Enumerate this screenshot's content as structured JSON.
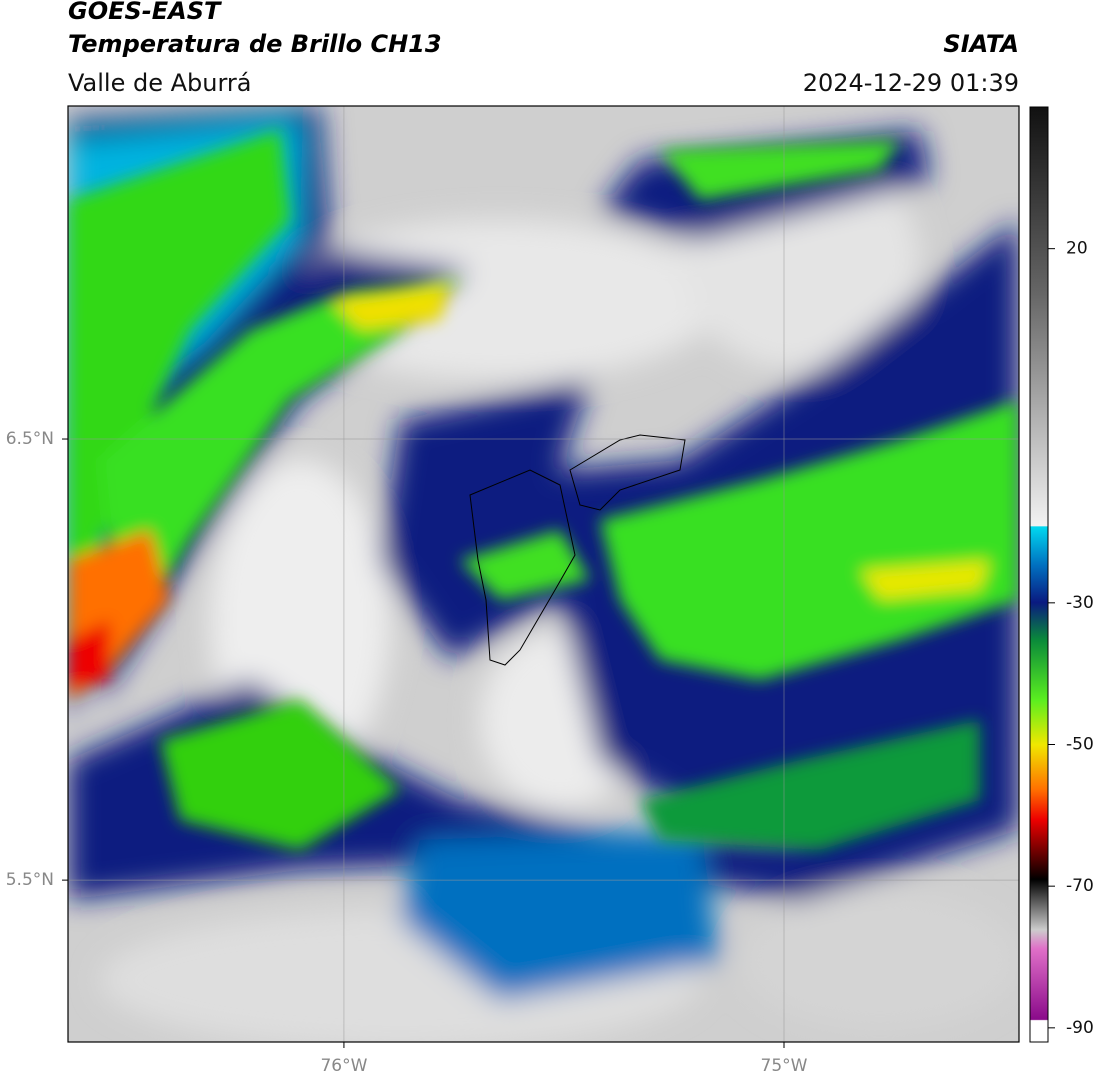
{
  "header": {
    "title": "GOES-EAST",
    "subtitle": "Temperatura de Brillo CH13",
    "source": "SIATA",
    "region": "Valle de Aburrá",
    "datetime": "2024-12-29 01:39"
  },
  "map": {
    "xlim": [
      -76.627,
      -74.466
    ],
    "ylim": [
      5.133,
      7.255
    ],
    "xticks": [
      {
        "value": -76,
        "label": "76°W"
      },
      {
        "value": -75,
        "label": "75°W"
      }
    ],
    "yticks": [
      {
        "value": 6.5,
        "label": "6.5°N"
      },
      {
        "value": 5.5,
        "label": "5.5°N"
      }
    ]
  },
  "colorbar": {
    "lim": [
      -92,
      40
    ],
    "ticks": [
      20,
      -30,
      -50,
      -70,
      -90
    ]
  }
}
